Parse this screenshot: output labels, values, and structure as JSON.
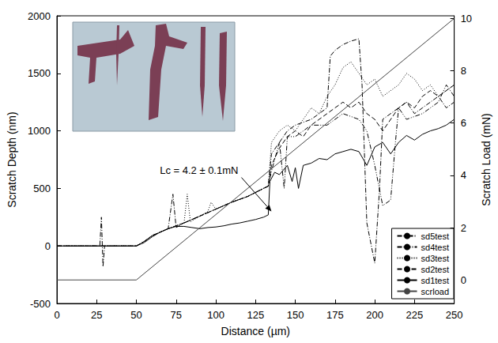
{
  "chart_data": {
    "type": "line",
    "x_label": "Distance (µm)",
    "y_label": "Scratch Depth (nm)",
    "y2_label": "Scratch Load (mN)",
    "xlim": [
      0,
      250
    ],
    "xticks": [
      0,
      25,
      50,
      75,
      100,
      125,
      150,
      175,
      200,
      225,
      250
    ],
    "ylim": [
      -500,
      2000
    ],
    "yticks": [
      -500,
      0,
      500,
      1000,
      1500,
      2000
    ],
    "y2lim": [
      -0.9,
      10.1
    ],
    "y2ticks": [
      0,
      2,
      4,
      6,
      8,
      10
    ],
    "grid": false,
    "legend": "lower right",
    "annotations": [
      {
        "text": "Lc = 4.2 ± 0.1mN",
        "x": 135,
        "y": 300
      }
    ],
    "series": [
      {
        "name": "sd5test",
        "color": "#000000",
        "line_style": "dashdotdot",
        "x": [
          0,
          50,
          55,
          60,
          70,
          80,
          90,
          100,
          110,
          120,
          130,
          133,
          135,
          140,
          143,
          145,
          150,
          160,
          170,
          180,
          190,
          195,
          200,
          205,
          210,
          213,
          215,
          220,
          230,
          240,
          245,
          250
        ],
        "values": [
          0,
          0,
          40,
          90,
          150,
          200,
          260,
          320,
          380,
          430,
          500,
          520,
          650,
          900,
          500,
          950,
          950,
          1050,
          1050,
          1150,
          1100,
          1000,
          700,
          350,
          400,
          900,
          1200,
          1100,
          1150,
          1250,
          1400,
          1300
        ]
      },
      {
        "name": "sd4test",
        "color": "#000000",
        "line_style": "dashdot",
        "x": [
          0,
          27,
          28,
          29,
          30,
          50,
          55,
          60,
          70,
          73,
          75,
          80,
          90,
          100,
          110,
          120,
          130,
          133,
          135,
          140,
          145,
          150,
          160,
          170,
          172,
          175,
          180,
          185,
          190,
          192,
          195,
          200,
          203,
          205,
          210,
          215,
          220,
          225,
          230,
          235,
          240,
          245,
          250
        ],
        "values": [
          0,
          0,
          250,
          -180,
          0,
          0,
          40,
          90,
          150,
          450,
          160,
          200,
          260,
          320,
          380,
          430,
          500,
          520,
          800,
          900,
          1000,
          1050,
          1100,
          1200,
          1650,
          1700,
          1750,
          1780,
          1800,
          1400,
          200,
          -150,
          500,
          1100,
          1150,
          1200,
          1250,
          1150,
          1200,
          1250,
          1300,
          1200,
          1250
        ]
      },
      {
        "name": "sd3test",
        "color": "#000000",
        "line_style": "dotted",
        "x": [
          0,
          50,
          55,
          60,
          70,
          80,
          82,
          84,
          90,
          95,
          97,
          100,
          110,
          120,
          130,
          133,
          135,
          140,
          145,
          150,
          155,
          160,
          165,
          170,
          175,
          180,
          185,
          190,
          195,
          200,
          205,
          210,
          215,
          220,
          225,
          230,
          235,
          240,
          245,
          250
        ],
        "values": [
          0,
          0,
          40,
          90,
          150,
          200,
          450,
          210,
          260,
          300,
          380,
          320,
          380,
          430,
          500,
          520,
          900,
          1000,
          1050,
          1000,
          1100,
          1200,
          1150,
          1300,
          1400,
          1550,
          1600,
          1500,
          1400,
          1450,
          1300,
          1350,
          1400,
          1500,
          1450,
          1350,
          1400,
          1300,
          1350,
          1400
        ]
      },
      {
        "name": "sd2test",
        "color": "#000000",
        "line_style": "dashed",
        "x": [
          0,
          50,
          55,
          60,
          70,
          80,
          90,
          100,
          110,
          120,
          130,
          133,
          135,
          140,
          145,
          150,
          155,
          160,
          165,
          170,
          175,
          180,
          185,
          190,
          195,
          200,
          205,
          210,
          215,
          220,
          225,
          230,
          235,
          240,
          245,
          250
        ],
        "values": [
          0,
          0,
          40,
          90,
          150,
          200,
          260,
          320,
          380,
          430,
          500,
          520,
          700,
          850,
          950,
          1000,
          950,
          1050,
          1100,
          1150,
          1200,
          1250,
          1200,
          1250,
          1150,
          1100,
          1000,
          1100,
          1200,
          1250,
          1200,
          1300,
          1350,
          1300,
          1350,
          1400
        ]
      },
      {
        "name": "sd1test",
        "color": "#000000",
        "line_style": "solid",
        "x": [
          0,
          50,
          55,
          60,
          65,
          70,
          75,
          80,
          85,
          90,
          95,
          100,
          105,
          110,
          115,
          120,
          125,
          130,
          133,
          134,
          137,
          140,
          145,
          148,
          150,
          152,
          155,
          160,
          165,
          170,
          175,
          180,
          185,
          190,
          195,
          200,
          205,
          210,
          215,
          220,
          225,
          230,
          235,
          240,
          245,
          250
        ],
        "values": [
          0,
          0,
          30,
          80,
          120,
          150,
          170,
          170,
          160,
          150,
          160,
          165,
          175,
          190,
          200,
          215,
          230,
          250,
          270,
          560,
          640,
          620,
          700,
          560,
          680,
          500,
          700,
          720,
          760,
          750,
          800,
          820,
          840,
          820,
          700,
          860,
          900,
          800,
          900,
          960,
          920,
          970,
          1000,
          1020,
          1050,
          1100
        ]
      },
      {
        "name": "scrload",
        "color": "#444444",
        "line_style": "solid",
        "axis": "y2",
        "x": [
          0,
          50,
          250
        ],
        "values": [
          0,
          0,
          10
        ]
      }
    ]
  }
}
